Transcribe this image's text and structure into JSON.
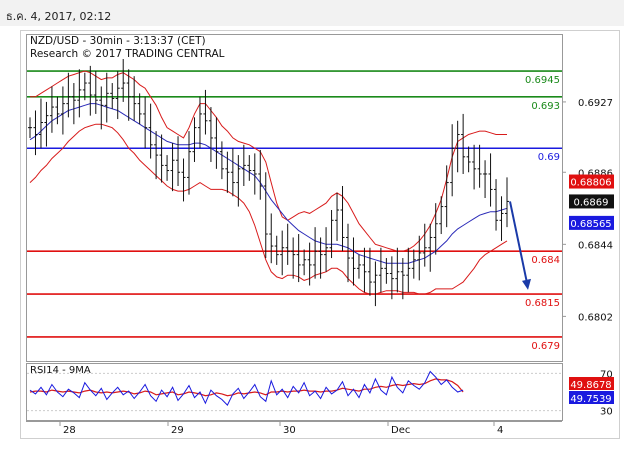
{
  "header": {
    "timestamp": "ธ.ค. 4, 2017, 02:12"
  },
  "chart_data": [
    {
      "type": "candlestick",
      "title": "NZD/USD - 30min - 3:13:37 (CET)",
      "subtitle": "Research © 2017 TRADING CENTRAL",
      "ylim": [
        0.6776,
        0.6966
      ],
      "y_ticks": [
        0.6927,
        0.6886,
        0.6844,
        0.6802
      ],
      "x_ticks": [
        "28",
        "29",
        "30",
        "Dec",
        "4"
      ],
      "horizontal_levels": [
        {
          "value": 0.6945,
          "label": "0.6945",
          "color": "#1a8a1a"
        },
        {
          "value": 0.693,
          "label": "0.693",
          "color": "#1a8a1a"
        },
        {
          "value": 0.69,
          "label": "0.69",
          "color": "#1a1adf"
        },
        {
          "value": 0.684,
          "label": "0.684",
          "color": "#e01010"
        },
        {
          "value": 0.6815,
          "label": "0.6815",
          "color": "#e01010"
        },
        {
          "value": 0.679,
          "label": "0.679",
          "color": "#e01010"
        }
      ],
      "price_badges": [
        {
          "label": "0.68806",
          "color": "#e01010"
        },
        {
          "label": "0.6869",
          "color": "#111111"
        },
        {
          "label": "0.68565",
          "color": "#1a1adf"
        }
      ],
      "forecast_arrow": {
        "from": 0.6869,
        "to": 0.6818,
        "color": "#1a3aa8"
      },
      "series": [
        {
          "name": "price",
          "values": [
            0.6912,
            0.6908,
            0.6915,
            0.6919,
            0.6924,
            0.692,
            0.6926,
            0.693,
            0.6928,
            0.6934,
            0.6938,
            0.6931,
            0.6928,
            0.6925,
            0.6932,
            0.6929,
            0.6935,
            0.6938,
            0.693,
            0.6926,
            0.692,
            0.6912,
            0.6902,
            0.6896,
            0.689,
            0.6887,
            0.6893,
            0.6886,
            0.6883,
            0.6898,
            0.6912,
            0.692,
            0.6916,
            0.6906,
            0.6898,
            0.6888,
            0.6886,
            0.688,
            0.6888,
            0.689,
            0.6887,
            0.6885,
            0.6878,
            0.685,
            0.6843,
            0.6838,
            0.6842,
            0.684,
            0.6838,
            0.6832,
            0.6835,
            0.6832,
            0.684,
            0.6838,
            0.6842,
            0.6858,
            0.6864,
            0.6848,
            0.6836,
            0.683,
            0.6832,
            0.6828,
            0.6822,
            0.6826,
            0.683,
            0.6827,
            0.6824,
            0.6828,
            0.6826,
            0.683,
            0.6835,
            0.6839,
            0.6842,
            0.6848,
            0.6856,
            0.6866,
            0.688,
            0.69,
            0.6908,
            0.6895,
            0.6892,
            0.6888,
            0.6885,
            0.6885,
            0.6876,
            0.6858,
            0.6862,
            0.6869
          ]
        },
        {
          "name": "ma",
          "values": [
            0.6905,
            0.6907,
            0.691,
            0.6913,
            0.6916,
            0.6918,
            0.692,
            0.6922,
            0.6923,
            0.6924,
            0.6925,
            0.6926,
            0.6926,
            0.6925,
            0.6924,
            0.6923,
            0.6922,
            0.692,
            0.6918,
            0.6916,
            0.6914,
            0.6912,
            0.691,
            0.6908,
            0.6906,
            0.6904,
            0.6903,
            0.6902,
            0.6902,
            0.6902,
            0.6903,
            0.6903,
            0.6902,
            0.69,
            0.6898,
            0.6896,
            0.6894,
            0.6892,
            0.689,
            0.6888,
            0.6886,
            0.6884,
            0.688,
            0.6875,
            0.687,
            0.6866,
            0.6862,
            0.6858,
            0.6855,
            0.6852,
            0.685,
            0.6848,
            0.6846,
            0.6845,
            0.6844,
            0.6844,
            0.6844,
            0.6843,
            0.6842,
            0.684,
            0.6838,
            0.6837,
            0.6836,
            0.6835,
            0.6834,
            0.6833,
            0.6833,
            0.6833,
            0.6833,
            0.6833,
            0.6834,
            0.6835,
            0.6836,
            0.6838,
            0.684,
            0.6843,
            0.6846,
            0.685,
            0.6853,
            0.6855,
            0.6857,
            0.6859,
            0.6861,
            0.6862,
            0.6863,
            0.6863,
            0.6864,
            0.6865
          ]
        },
        {
          "name": "bollinger_upper",
          "values": [
            0.693,
            0.693,
            0.6932,
            0.6934,
            0.6936,
            0.6938,
            0.694,
            0.6942,
            0.6943,
            0.6944,
            0.6945,
            0.6944,
            0.6942,
            0.694,
            0.6941,
            0.6941,
            0.6943,
            0.6944,
            0.6942,
            0.694,
            0.6937,
            0.6935,
            0.693,
            0.6925,
            0.6918,
            0.6912,
            0.691,
            0.6908,
            0.6906,
            0.6912,
            0.692,
            0.6926,
            0.6926,
            0.6922,
            0.6918,
            0.6913,
            0.691,
            0.6906,
            0.6904,
            0.6903,
            0.6902,
            0.69,
            0.6898,
            0.6892,
            0.688,
            0.6868,
            0.686,
            0.6858,
            0.686,
            0.6862,
            0.6863,
            0.6862,
            0.6864,
            0.6866,
            0.6868,
            0.6872,
            0.6874,
            0.6872,
            0.6868,
            0.6862,
            0.6856,
            0.6852,
            0.6848,
            0.6844,
            0.6843,
            0.6842,
            0.6841,
            0.684,
            0.684,
            0.6841,
            0.6843,
            0.6846,
            0.685,
            0.6855,
            0.6862,
            0.687,
            0.6882,
            0.6895,
            0.6904,
            0.6906,
            0.6908,
            0.6909,
            0.691,
            0.691,
            0.6909,
            0.6908,
            0.6908,
            0.6908
          ]
        },
        {
          "name": "bollinger_lower",
          "values": [
            0.688,
            0.6883,
            0.6887,
            0.689,
            0.6894,
            0.6897,
            0.69,
            0.6904,
            0.6907,
            0.691,
            0.6912,
            0.6913,
            0.6914,
            0.6914,
            0.6913,
            0.6912,
            0.6909,
            0.6905,
            0.69,
            0.6897,
            0.6893,
            0.689,
            0.6887,
            0.6884,
            0.6881,
            0.6878,
            0.6876,
            0.6875,
            0.6875,
            0.6876,
            0.6878,
            0.688,
            0.6878,
            0.6876,
            0.6876,
            0.6876,
            0.6875,
            0.6873,
            0.6871,
            0.6868,
            0.6863,
            0.6855,
            0.6845,
            0.6835,
            0.6828,
            0.6825,
            0.6824,
            0.6826,
            0.6826,
            0.6825,
            0.6823,
            0.6824,
            0.6826,
            0.6827,
            0.6828,
            0.683,
            0.683,
            0.6828,
            0.6824,
            0.6821,
            0.6818,
            0.6816,
            0.6815,
            0.6815,
            0.6816,
            0.6817,
            0.6817,
            0.6817,
            0.6816,
            0.6816,
            0.6816,
            0.6815,
            0.6815,
            0.6816,
            0.6818,
            0.6818,
            0.6818,
            0.6818,
            0.682,
            0.6822,
            0.6826,
            0.683,
            0.6835,
            0.6838,
            0.684,
            0.6842,
            0.6844,
            0.6846
          ]
        }
      ]
    },
    {
      "type": "line",
      "title": "RSI14 - 9MA",
      "ylim": [
        20,
        80
      ],
      "y_ticks": [
        70,
        30
      ],
      "price_badges": [
        {
          "label": "49.8678",
          "color": "#e01010"
        },
        {
          "label": "49.7539",
          "color": "#1a1adf"
        }
      ],
      "series": [
        {
          "name": "RSI14",
          "values": [
            52,
            48,
            55,
            47,
            58,
            50,
            45,
            53,
            49,
            44,
            60,
            52,
            46,
            54,
            42,
            49,
            55,
            47,
            51,
            43,
            50,
            58,
            46,
            40,
            52,
            45,
            55,
            41,
            48,
            57,
            44,
            50,
            38,
            52,
            46,
            42,
            36,
            48,
            54,
            43,
            50,
            58,
            45,
            40,
            62,
            47,
            53,
            44,
            56,
            49,
            60,
            46,
            51,
            43,
            55,
            48,
            52,
            61,
            46,
            53,
            44,
            58,
            49,
            64,
            52,
            47,
            66,
            55,
            49,
            62,
            57,
            53,
            60,
            72,
            66,
            58,
            63,
            55,
            50,
            52
          ]
        },
        {
          "name": "9MA",
          "values": [
            50,
            51,
            51,
            50,
            52,
            51,
            50,
            51,
            50,
            49,
            51,
            52,
            50,
            49,
            50,
            49,
            50,
            51,
            50,
            48,
            49,
            51,
            50,
            47,
            48,
            49,
            50,
            47,
            48,
            50,
            49,
            48,
            46,
            47,
            49,
            48,
            46,
            47,
            49,
            48,
            49,
            50,
            49,
            47,
            50,
            50,
            51,
            50,
            51,
            51,
            52,
            51,
            51,
            50,
            51,
            51,
            52,
            54,
            53,
            52,
            51,
            53,
            53,
            55,
            56,
            55,
            57,
            58,
            57,
            58,
            59,
            58,
            59,
            62,
            64,
            63,
            63,
            61,
            57,
            50
          ]
        }
      ]
    }
  ]
}
